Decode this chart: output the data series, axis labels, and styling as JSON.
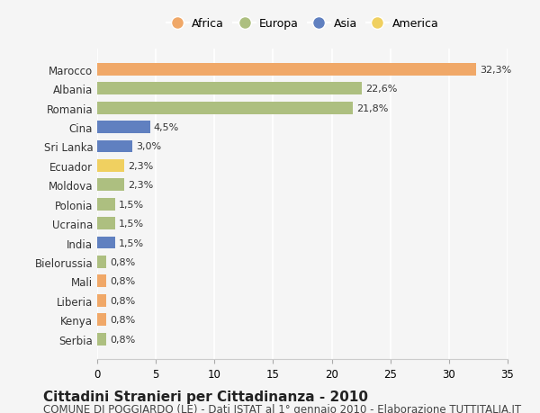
{
  "categories": [
    "Marocco",
    "Albania",
    "Romania",
    "Cina",
    "Sri Lanka",
    "Ecuador",
    "Moldova",
    "Polonia",
    "Ucraina",
    "India",
    "Bielorussia",
    "Mali",
    "Liberia",
    "Kenya",
    "Serbia"
  ],
  "values": [
    32.3,
    22.6,
    21.8,
    4.5,
    3.0,
    2.3,
    2.3,
    1.5,
    1.5,
    1.5,
    0.8,
    0.8,
    0.8,
    0.8,
    0.8
  ],
  "labels": [
    "32,3%",
    "22,6%",
    "21,8%",
    "4,5%",
    "3,0%",
    "2,3%",
    "2,3%",
    "1,5%",
    "1,5%",
    "1,5%",
    "0,8%",
    "0,8%",
    "0,8%",
    "0,8%",
    "0,8%"
  ],
  "continents": [
    "Africa",
    "Europa",
    "Europa",
    "Asia",
    "Asia",
    "America",
    "Europa",
    "Europa",
    "Europa",
    "Asia",
    "Europa",
    "Africa",
    "Africa",
    "Africa",
    "Europa"
  ],
  "colors": {
    "Africa": "#F0A868",
    "Europa": "#ADBF80",
    "Asia": "#6080C0",
    "America": "#F0D060"
  },
  "legend_order": [
    "Africa",
    "Europa",
    "Asia",
    "America"
  ],
  "title": "Cittadini Stranieri per Cittadinanza - 2010",
  "subtitle": "COMUNE DI POGGIARDO (LE) - Dati ISTAT al 1° gennaio 2010 - Elaborazione TUTTITALIA.IT",
  "xlim": [
    0,
    35
  ],
  "xticks": [
    0,
    5,
    10,
    15,
    20,
    25,
    30,
    35
  ],
  "background_color": "#f5f5f5",
  "grid_color": "#ffffff",
  "title_fontsize": 11,
  "subtitle_fontsize": 8.5,
  "bar_height": 0.65
}
